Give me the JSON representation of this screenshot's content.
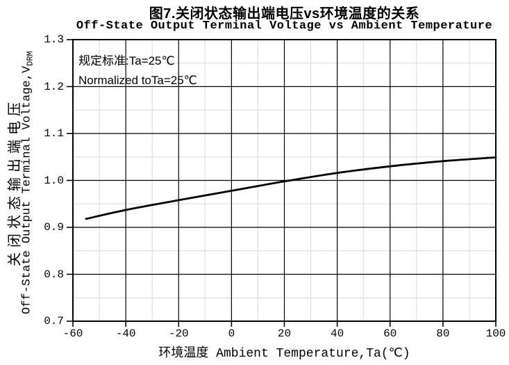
{
  "title": "图7.关闭状态输出端电压vs环境温度的关系",
  "subtitle": "Off-State Output Terminal Voltage vs Ambient Temperature",
  "annotation": {
    "line1": "规定标准:Ta=25℃",
    "line2": "Normalized toTa=25℃"
  },
  "x_axis": {
    "title": "环境温度 Ambient Temperature,Ta(℃)"
  },
  "y_axis": {
    "title_cn": "关闭状态输出端电压",
    "title_en_main": "Off-State Output Terminal Voltage,V",
    "title_en_sub": "DRM"
  },
  "chart_data": {
    "type": "line",
    "title": "图7.关闭状态输出端电压vs环境温度的关系",
    "subtitle": "Off-State Output Terminal Voltage vs Ambient Temperature",
    "xlabel": "环境温度 Ambient Temperature,Ta(℃)",
    "ylabel": "关闭状态输出端电压 Off-State Output Terminal Voltage,VDRM",
    "x": [
      -55,
      -40,
      -20,
      0,
      20,
      40,
      60,
      80,
      100
    ],
    "y": [
      0.918,
      0.937,
      0.958,
      0.978,
      0.998,
      1.016,
      1.03,
      1.041,
      1.049
    ],
    "xlim": [
      -60,
      100
    ],
    "ylim": [
      0.7,
      1.3
    ],
    "x_tick_values": [
      -60,
      -40,
      -20,
      0,
      20,
      40,
      60,
      80,
      100
    ],
    "x_tick_labels": [
      "-60",
      "-40",
      "-20",
      "0",
      "20",
      "40",
      "60",
      "80",
      "100"
    ],
    "y_tick_values": [
      0.7,
      0.8,
      0.9,
      1.0,
      1.1,
      1.2,
      1.3
    ],
    "y_tick_labels": [
      "0.7",
      "0.8",
      "0.9",
      "1.0",
      "1.1",
      "1.2",
      "1.3"
    ],
    "x_major_step": 20,
    "x_minor_step": 10,
    "y_major_step": 0.1,
    "y_minor_step": 0.05,
    "grid": "major and minor, both axes",
    "legend_position": "none",
    "annotation_line1": "规定标准:Ta=25℃",
    "annotation_line2": "Normalized toTa=25℃",
    "line_color": "#000000",
    "major_grid_color": "#000000",
    "minor_grid_color": "#d9d9d9",
    "frame_color": "#000000"
  }
}
